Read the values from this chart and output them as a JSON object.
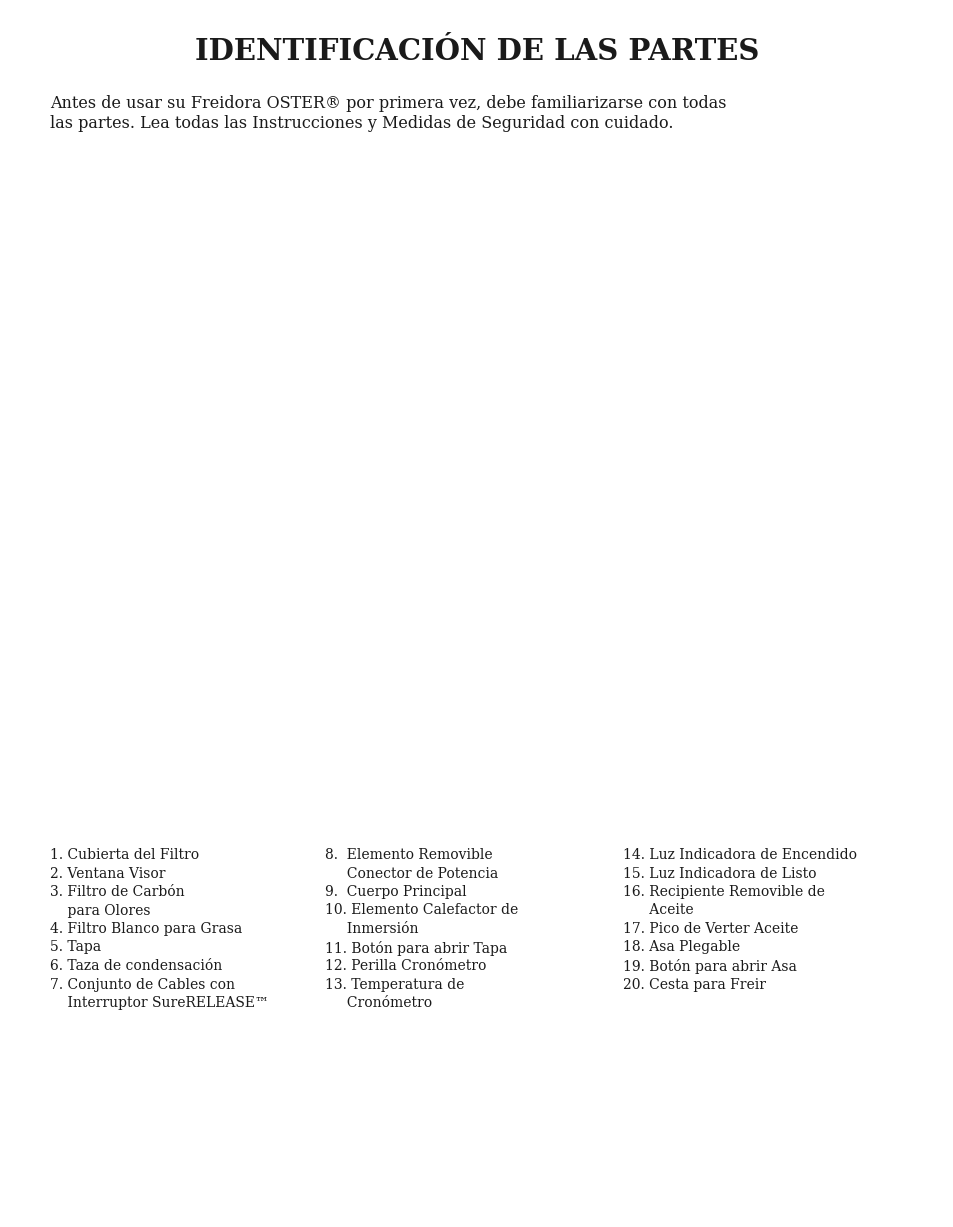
{
  "background_color": "#ffffff",
  "text_color": "#1a1a1a",
  "title_line1": "I",
  "title_line1b": "DENTIFICACIÓN DE LAS ",
  "title_line1c": "P",
  "title_line1d": "ARTES",
  "title_small_caps": "IDENTIFICACIÓN DE LAS PARTES",
  "intro_text_line1": "Antes de usar su Freidora OSTER® por primera vez, debe familiarizarse con todas",
  "intro_text_line2": "las partes. Lea todas las Instrucciones y Medidas de Seguridad con cuidado.",
  "font_size_title_large": 22,
  "font_size_title_small": 16,
  "font_size_intro": 11.5,
  "font_size_list": 10.0,
  "col1_items": [
    [
      "1.",
      " Cubierta del Filtro",
      false
    ],
    [
      "2.",
      " Ventana Visor",
      false
    ],
    [
      "3.",
      " Filtro de Carbón",
      false
    ],
    [
      "",
      "    para Olores",
      true
    ],
    [
      "4.",
      " Filtro Blanco para Grasa",
      false
    ],
    [
      "5.",
      " Tapa",
      false
    ],
    [
      "6.",
      " Taza de condensación",
      false
    ],
    [
      "7.",
      " Conjunto de Cables con",
      false
    ],
    [
      "",
      "    Interruptor SureRELEASE™",
      true
    ]
  ],
  "col2_items": [
    [
      "8.",
      "  Elemento Removible",
      false
    ],
    [
      "",
      "     Conector de Potencia",
      true
    ],
    [
      "9.",
      "  Cuerpo Principal",
      false
    ],
    [
      "10.",
      " Elemento Calefactor de",
      false
    ],
    [
      "",
      "     Inmersión",
      true
    ],
    [
      "11.",
      " Botón para abrir Tapa",
      false
    ],
    [
      "12.",
      " Perilla Cronómetro",
      false
    ],
    [
      "13.",
      " Temperatura de",
      false
    ],
    [
      "",
      "     Cronómetro",
      true
    ]
  ],
  "col3_items": [
    [
      "14.",
      " Luz Indicadora de Encendido",
      false
    ],
    [
      "15.",
      " Luz Indicadora de Listo",
      false
    ],
    [
      "16.",
      " Recipiente Removible de",
      false
    ],
    [
      "",
      "      Aceite",
      true
    ],
    [
      "17.",
      " Pico de Verter Aceite",
      false
    ],
    [
      "18.",
      " Asa Plegable",
      false
    ],
    [
      "19.",
      " Botón para abrir Asa",
      false
    ],
    [
      "20.",
      " Cesta para Freir",
      false
    ]
  ]
}
